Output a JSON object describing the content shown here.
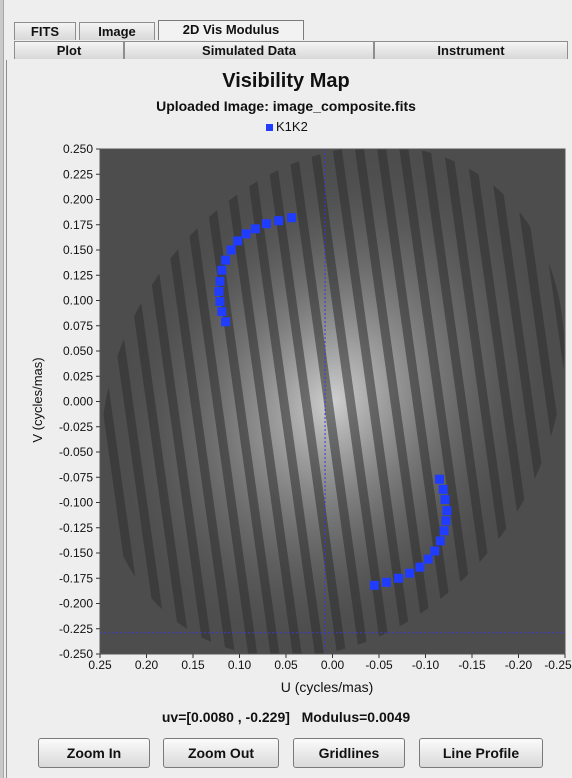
{
  "tabs_row1": [
    {
      "label": "FITS",
      "active": false
    },
    {
      "label": "Image",
      "active": false
    },
    {
      "label": "2D Vis Modulus",
      "active": true
    }
  ],
  "tabs_row2": [
    {
      "label": "Plot"
    },
    {
      "label": "Simulated Data"
    },
    {
      "label": "Instrument"
    }
  ],
  "chart_data": {
    "type": "scatter",
    "title": "Visibility Map",
    "subtitle": "Uploaded Image: image_composite.fits",
    "xlabel": "U (cycles/mas)",
    "ylabel": "V (cycles/mas)",
    "xlim": [
      0.25,
      -0.25
    ],
    "ylim": [
      -0.25,
      0.25
    ],
    "x_ticks": [
      "0.25",
      "0.20",
      "0.15",
      "0.10",
      "0.05",
      "0.00",
      "-0.05",
      "-0.10",
      "-0.15",
      "-0.20",
      "-0.25"
    ],
    "y_ticks": [
      "0.250",
      "0.225",
      "0.200",
      "0.175",
      "0.150",
      "0.125",
      "0.100",
      "0.075",
      "0.050",
      "0.025",
      "0.000",
      "-0.025",
      "-0.050",
      "-0.075",
      "-0.100",
      "-0.125",
      "-0.150",
      "-0.175",
      "-0.200",
      "-0.225",
      "-0.250"
    ],
    "legend": "top-center",
    "crosshair": {
      "u": 0.008,
      "v": -0.229
    },
    "series": [
      {
        "name": "K1K2",
        "color": "#1f3cff",
        "points": [
          [
            0.115,
            0.079
          ],
          [
            0.119,
            0.089
          ],
          [
            0.121,
            0.099
          ],
          [
            0.122,
            0.109
          ],
          [
            0.121,
            0.119
          ],
          [
            0.119,
            0.13
          ],
          [
            0.115,
            0.14
          ],
          [
            0.109,
            0.15
          ],
          [
            0.102,
            0.159
          ],
          [
            0.093,
            0.166
          ],
          [
            0.083,
            0.171
          ],
          [
            0.071,
            0.176
          ],
          [
            0.058,
            0.179
          ],
          [
            0.044,
            0.182
          ],
          [
            -0.115,
            -0.077
          ],
          [
            -0.119,
            -0.087
          ],
          [
            -0.121,
            -0.097
          ],
          [
            -0.123,
            -0.108
          ],
          [
            -0.122,
            -0.118
          ],
          [
            -0.12,
            -0.128
          ],
          [
            -0.116,
            -0.138
          ],
          [
            -0.11,
            -0.148
          ],
          [
            -0.103,
            -0.156
          ],
          [
            -0.094,
            -0.164
          ],
          [
            -0.083,
            -0.17
          ],
          [
            -0.071,
            -0.175
          ],
          [
            -0.058,
            -0.179
          ],
          [
            -0.045,
            -0.182
          ]
        ]
      }
    ]
  },
  "status": {
    "uv": "uv=[0.0080 , -0.229]",
    "modulus": "Modulus=0.0049"
  },
  "buttons": {
    "zoom_in": "Zoom In",
    "zoom_out": "Zoom Out",
    "gridlines": "Gridlines",
    "line_profile": "Line Profile"
  }
}
